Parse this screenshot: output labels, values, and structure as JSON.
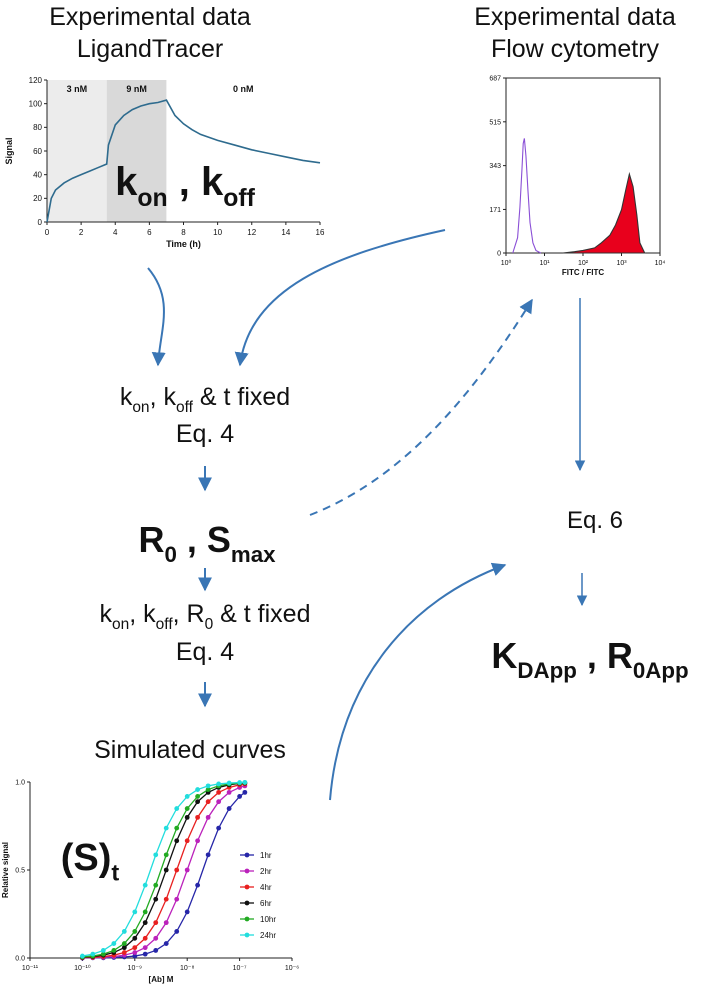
{
  "diagram": {
    "left_title": [
      "Experimental data",
      "LigandTracer"
    ],
    "right_title": [
      "Experimental data",
      "Flow cytometry"
    ],
    "rates": [
      "k",
      "on",
      " ,  k",
      "off"
    ],
    "step1": [
      "k",
      "on",
      ", k",
      "off",
      " & t fixed"
    ],
    "step1_eq": "Eq. 4",
    "result1": [
      "R",
      "0",
      " , S",
      "max"
    ],
    "step2": [
      "k",
      "on",
      ", k",
      "off",
      ", R",
      "0",
      " & t fixed"
    ],
    "step2_eq": "Eq. 4",
    "step3": "Simulated curves",
    "curves_label": [
      "(S)",
      "t"
    ],
    "right_eq": "Eq. 6",
    "result2": [
      "K",
      "DApp",
      " ,  R",
      "0App"
    ]
  },
  "chart_data": [
    {
      "type": "line",
      "xlabel": "Time (h)",
      "ylabel": "Signal",
      "xlim": [
        0,
        16
      ],
      "ylim": [
        0,
        120
      ],
      "xticks": [
        0,
        2,
        4,
        6,
        8,
        10,
        12,
        14,
        16
      ],
      "yticks": [
        0,
        20,
        40,
        60,
        80,
        100,
        120
      ],
      "bands": [
        {
          "label": "3 nM",
          "from": 0,
          "to": 3.5,
          "color": "#ececec"
        },
        {
          "label": "9 nM",
          "from": 3.5,
          "to": 7,
          "color": "#d9d9d9"
        },
        {
          "label": "0 nM",
          "from": 7,
          "to": 16,
          "color": "#ffffff"
        }
      ],
      "x": [
        0,
        0.25,
        0.5,
        1,
        1.5,
        2,
        2.5,
        3,
        3.5,
        3.6,
        4,
        4.5,
        5,
        5.5,
        6,
        6.5,
        7,
        7.5,
        8,
        8.5,
        9,
        10,
        11,
        12,
        13,
        14,
        15,
        16
      ],
      "series": [
        {
          "color": "#2e6b8e",
          "values": [
            0,
            20,
            27,
            33,
            37,
            40,
            43,
            46,
            49,
            65,
            82,
            90,
            95,
            98,
            100,
            101,
            103,
            90,
            83,
            78,
            74,
            69,
            65,
            61,
            58,
            55,
            52,
            50
          ]
        }
      ]
    },
    {
      "type": "area",
      "xlabel": "FITC / FITC",
      "xlog": true,
      "xlim": [
        1,
        10000
      ],
      "ylim": [
        0,
        687
      ],
      "xticks": [
        {
          "value": 1,
          "label": "10⁰"
        },
        {
          "value": 10,
          "label": "10¹"
        },
        {
          "value": 100,
          "label": "10²"
        },
        {
          "value": 1000,
          "label": "10³"
        },
        {
          "value": 10000,
          "label": "10⁴"
        }
      ],
      "yticks": [
        0,
        171,
        343,
        515,
        687
      ],
      "series": [
        {
          "color": "#8a4fd6",
          "filled": false,
          "x": [
            1.5,
            2,
            2.3,
            2.6,
            2.8,
            3,
            3.3,
            3.7,
            4.2,
            5,
            6,
            8
          ],
          "values": [
            0,
            60,
            180,
            330,
            430,
            450,
            380,
            250,
            120,
            40,
            10,
            0
          ]
        },
        {
          "color": "#e8001c",
          "filled": true,
          "x": [
            30,
            60,
            100,
            200,
            300,
            500,
            700,
            1000,
            1300,
            1600,
            2000,
            2500,
            3000,
            4000
          ],
          "values": [
            0,
            5,
            10,
            20,
            40,
            70,
            110,
            170,
            250,
            310,
            260,
            150,
            40,
            0
          ]
        }
      ]
    },
    {
      "type": "line",
      "xlabel": "[Ab] M",
      "ylabel": "Relative signal",
      "xlog": true,
      "markers": true,
      "xlim": [
        1e-11,
        1e-06
      ],
      "ylim": [
        0,
        1
      ],
      "xticks": [
        {
          "value": 1e-11,
          "label": "10⁻¹¹"
        },
        {
          "value": 1e-10,
          "label": "10⁻¹⁰"
        },
        {
          "value": 1e-09,
          "label": "10⁻⁹"
        },
        {
          "value": 1e-08,
          "label": "10⁻⁸"
        },
        {
          "value": 1e-07,
          "label": "10⁻⁷"
        },
        {
          "value": 1e-06,
          "label": "10⁻⁶"
        }
      ],
      "yticks": [
        {
          "value": 0,
          "label": "0.0"
        },
        {
          "value": 0.5,
          "label": "0.5"
        },
        {
          "value": 1,
          "label": "1.0"
        }
      ],
      "x": [
        1e-10,
        1.58e-10,
        2.51e-10,
        3.98e-10,
        6.31e-10,
        1e-09,
        1.58e-09,
        2.51e-09,
        3.98e-09,
        6.31e-09,
        1e-08,
        1.58e-08,
        2.51e-08,
        3.98e-08,
        6.31e-08,
        1e-07,
        1.26e-07
      ],
      "series": [
        {
          "name": "1hr",
          "color": "#2626a8",
          "values": [
            0.0,
            0.001,
            0.001,
            0.003,
            0.006,
            0.011,
            0.022,
            0.043,
            0.082,
            0.151,
            0.262,
            0.414,
            0.586,
            0.738,
            0.849,
            0.918,
            0.941
          ]
        },
        {
          "name": "2hr",
          "color": "#bb22bb",
          "values": [
            0.001,
            0.002,
            0.004,
            0.008,
            0.016,
            0.031,
            0.059,
            0.112,
            0.201,
            0.334,
            0.5,
            0.666,
            0.799,
            0.888,
            0.941,
            0.969,
            0.978
          ]
        },
        {
          "name": "4hr",
          "color": "#e82020",
          "values": [
            0.002,
            0.004,
            0.008,
            0.016,
            0.031,
            0.059,
            0.112,
            0.201,
            0.334,
            0.5,
            0.666,
            0.799,
            0.888,
            0.941,
            0.969,
            0.984,
            0.989
          ]
        },
        {
          "name": "6hr",
          "color": "#111111",
          "values": [
            0.004,
            0.008,
            0.016,
            0.031,
            0.059,
            0.112,
            0.201,
            0.334,
            0.5,
            0.666,
            0.799,
            0.888,
            0.941,
            0.969,
            0.984,
            0.992,
            0.994
          ]
        },
        {
          "name": "10hr",
          "color": "#22aa22",
          "values": [
            0.006,
            0.011,
            0.022,
            0.043,
            0.082,
            0.151,
            0.262,
            0.414,
            0.586,
            0.738,
            0.849,
            0.918,
            0.957,
            0.978,
            0.989,
            0.994,
            0.996
          ]
        },
        {
          "name": "24hr",
          "color": "#22dddd",
          "values": [
            0.011,
            0.022,
            0.043,
            0.082,
            0.151,
            0.262,
            0.414,
            0.586,
            0.738,
            0.849,
            0.918,
            0.957,
            0.978,
            0.989,
            0.994,
            0.997,
            0.998
          ]
        }
      ]
    }
  ]
}
